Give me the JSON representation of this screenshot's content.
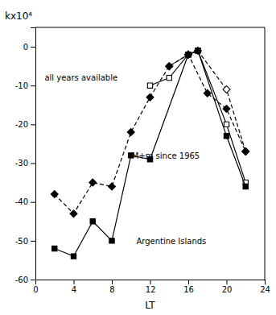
{
  "chart_data": {
    "type": "line",
    "xlabel": "LT",
    "ylabel": "kx10⁴",
    "xlim": [
      0,
      24
    ],
    "ylim": [
      -60,
      5
    ],
    "xticks": [
      0,
      4,
      8,
      12,
      16,
      20,
      24
    ],
    "yticks": [
      0,
      -10,
      -20,
      -30,
      -40,
      -50,
      -60
    ],
    "annotations": [
      "all years available",
      "M+m since 1965",
      "Argentine Islands"
    ],
    "series": [
      {
        "x": [
          14,
          16,
          17,
          20,
          22
        ],
        "values": [
          -5,
          -2,
          -1,
          -11,
          -27
        ],
        "color": "#000000",
        "marker": "diamond-open",
        "line_style": "dashed"
      },
      {
        "x": [
          12,
          14,
          16,
          17,
          20,
          22
        ],
        "values": [
          -10,
          -8,
          -2,
          -1,
          -20,
          -35
        ],
        "color": "#000000",
        "marker": "square-open",
        "line_style": "solid"
      },
      {
        "x": [
          2,
          4,
          6,
          8,
          10,
          12,
          14,
          16,
          18,
          20,
          22
        ],
        "values": [
          -38,
          -43,
          -35,
          -36,
          -22,
          -13,
          -5,
          -2,
          -12,
          -16,
          -27
        ],
        "color": "#000000",
        "marker": "diamond",
        "line_style": "dashed"
      },
      {
        "x": [
          2,
          4,
          6,
          8,
          10,
          12,
          16,
          17,
          20,
          22
        ],
        "values": [
          -52,
          -54,
          -45,
          -50,
          -28,
          -29,
          -2,
          -1,
          -23,
          -36
        ],
        "color": "#000000",
        "marker": "square",
        "line_style": "solid"
      }
    ]
  }
}
